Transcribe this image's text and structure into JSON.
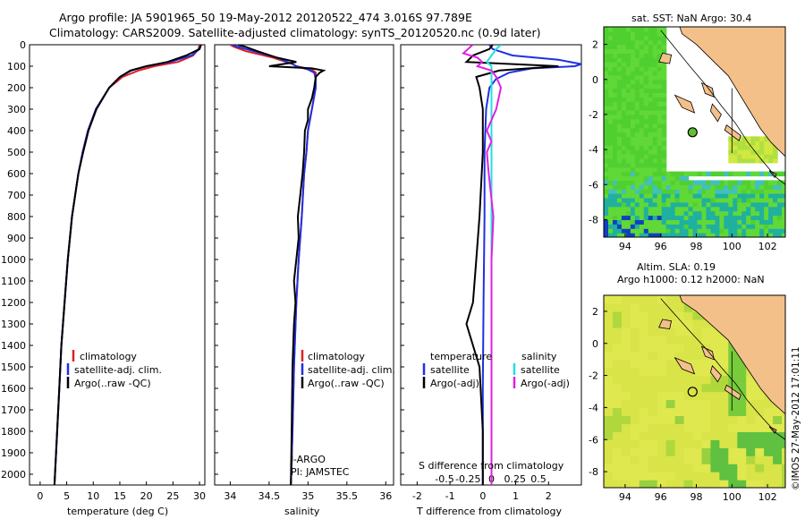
{
  "header": {
    "line1": "Argo profile: JA 5901965_50 19-May-2012 20120522_474 3.016S 97.789E",
    "line2": "Climatology: CARS2009. Satellite-adjusted climatology: synTS_20120520.nc (0.9d later)"
  },
  "colors": {
    "climatology": "#e02020",
    "satellite": "#2030e0",
    "argo": "#000000",
    "sat_salinity": "#20e0e0",
    "argo_adj_salinity": "#e020e0",
    "land": "#f4c08a",
    "ocean_nodata": "#ffffff"
  },
  "chart_data": [
    {
      "type": "line",
      "name": "temperature-profile",
      "xlabel": "temperature (deg C)",
      "ylabel": "",
      "xlim": [
        -2,
        31
      ],
      "ylim": [
        0,
        2050
      ],
      "y_reversed": true,
      "xticks": [
        "0",
        "5",
        "10",
        "15",
        "20",
        "25",
        "30"
      ],
      "yticks": [
        "0",
        "100",
        "200",
        "300",
        "400",
        "500",
        "600",
        "700",
        "800",
        "900",
        "1000",
        "1100",
        "1200",
        "1300",
        "1400",
        "1500",
        "1600",
        "1700",
        "1800",
        "1900",
        "2000"
      ],
      "legend": [
        "climatology",
        "satellite-adj. clim.",
        "Argo(..raw -QC)"
      ],
      "legend_position": "bottom-right",
      "series": [
        {
          "name": "climatology",
          "depth": [
            0,
            20,
            50,
            80,
            100,
            120,
            150,
            200,
            300,
            400,
            500,
            600,
            800,
            1000,
            1200,
            1400,
            1600,
            1800,
            2050
          ],
          "values": [
            30.0,
            29.8,
            28.8,
            26.0,
            21.5,
            18.5,
            15.5,
            13.0,
            10.5,
            9.0,
            8.0,
            7.2,
            6.0,
            5.2,
            4.6,
            4.0,
            3.6,
            3.2,
            2.7
          ]
        },
        {
          "name": "satellite-adj. clim.",
          "depth": [
            0,
            20,
            50,
            80,
            100,
            120,
            150,
            200,
            300,
            400,
            500,
            600,
            800,
            1000,
            1200,
            1400,
            1600,
            1800,
            2050
          ],
          "values": [
            30.2,
            30.0,
            28.5,
            24.5,
            20.0,
            17.2,
            15.0,
            13.0,
            10.5,
            9.0,
            8.0,
            7.2,
            6.0,
            5.2,
            4.6,
            4.0,
            3.6,
            3.2,
            2.7
          ]
        },
        {
          "name": "Argo(..raw -QC)",
          "depth": [
            0,
            20,
            50,
            80,
            100,
            120,
            150,
            200,
            300,
            400,
            500,
            600,
            800,
            1000,
            1200,
            1400,
            1600,
            1800,
            2050
          ],
          "values": [
            30.3,
            30.0,
            27.5,
            24.0,
            20.0,
            17.0,
            15.0,
            13.0,
            10.6,
            9.1,
            8.1,
            7.2,
            6.0,
            5.2,
            4.6,
            4.0,
            3.6,
            3.2,
            2.7
          ]
        }
      ]
    },
    {
      "type": "line",
      "name": "salinity-profile",
      "xlabel": "salinity",
      "xlim": [
        33.8,
        36.1
      ],
      "ylim": [
        0,
        2050
      ],
      "y_reversed": true,
      "xticks": [
        "34",
        "34.5",
        "35",
        "35.5",
        "36"
      ],
      "legend": [
        "climatology",
        "satellite-adj. clim.",
        "Argo(..raw -QC)"
      ],
      "legend_position": "bottom-right",
      "annotations": [
        "J-ARGO",
        "PI: JAMSTEC"
      ],
      "series": [
        {
          "name": "climatology",
          "depth": [
            0,
            10,
            30,
            60,
            90,
            100,
            115,
            130,
            160,
            200,
            300,
            400,
            500,
            600,
            800,
            1000,
            1200,
            1500,
            1800,
            2050
          ],
          "values": [
            34.0,
            34.05,
            34.2,
            34.55,
            34.8,
            34.85,
            35.05,
            35.1,
            35.1,
            35.1,
            35.05,
            35.0,
            34.98,
            34.95,
            34.92,
            34.88,
            34.85,
            34.82,
            34.8,
            34.78
          ]
        },
        {
          "name": "satellite-adj. clim.",
          "depth": [
            0,
            10,
            30,
            60,
            90,
            100,
            115,
            130,
            160,
            200,
            300,
            400,
            500,
            600,
            800,
            1000,
            1200,
            1500,
            1800,
            2050
          ],
          "values": [
            34.02,
            34.1,
            34.3,
            34.6,
            34.8,
            34.85,
            35.0,
            35.08,
            35.1,
            35.1,
            35.05,
            35.0,
            34.98,
            34.95,
            34.92,
            34.88,
            34.85,
            34.82,
            34.8,
            34.78
          ]
        },
        {
          "name": "Argo(..raw -QC)",
          "depth": [
            0,
            10,
            30,
            60,
            80,
            100,
            110,
            120,
            130,
            150,
            200,
            250,
            300,
            350,
            400,
            500,
            600,
            700,
            800,
            900,
            1000,
            1100,
            1200,
            1300,
            1500,
            1800,
            2050
          ],
          "values": [
            34.1,
            34.2,
            34.35,
            34.6,
            34.85,
            34.5,
            35.05,
            35.2,
            35.15,
            35.1,
            35.08,
            35.05,
            35.0,
            35.0,
            34.96,
            34.95,
            34.93,
            34.9,
            34.87,
            34.88,
            34.85,
            34.82,
            34.84,
            34.82,
            34.8,
            34.79,
            34.78
          ]
        }
      ]
    },
    {
      "type": "line",
      "name": "difference-profile",
      "xlabel": "T difference from climatology",
      "xlabel_top": "S difference from climatology",
      "xlim": [
        -2.5,
        3.0
      ],
      "ylim": [
        0,
        2050
      ],
      "y_reversed": true,
      "xticks": [
        "-2",
        "-1",
        "0",
        "1",
        "2"
      ],
      "xticks_s": [
        "-0.5",
        "-0.25",
        "0",
        "0.25",
        "0.5"
      ],
      "legend_header": [
        "temperature",
        "salinity"
      ],
      "legend": [
        "satellite",
        "Argo(-adj)",
        "satellite",
        "Argo(-adj)"
      ],
      "legend_position": "bottom",
      "series": [
        {
          "name": "T satellite",
          "depth": [
            0,
            20,
            50,
            70,
            90,
            100,
            110,
            130,
            160,
            200,
            300,
            500,
            800,
            1200,
            1600,
            2050
          ],
          "values": [
            0.2,
            0.3,
            0.9,
            2.3,
            3.0,
            2.8,
            1.5,
            0.8,
            0.4,
            0.2,
            0.1,
            0.05,
            0.05,
            0.02,
            0.0,
            0.0
          ]
        },
        {
          "name": "T Argo(-adj)",
          "depth": [
            0,
            20,
            50,
            80,
            100,
            120,
            150,
            200,
            300,
            500,
            800,
            1000,
            1200,
            1300,
            1400,
            1500,
            1800,
            2050
          ],
          "values": [
            0.3,
            0.2,
            -0.3,
            -0.5,
            2.3,
            0.5,
            -0.2,
            -0.1,
            0.0,
            0.0,
            -0.1,
            -0.2,
            -0.3,
            -0.5,
            -0.3,
            -0.1,
            0.0,
            0.0
          ]
        },
        {
          "name": "S satellite",
          "depth": [
            0,
            20,
            50,
            80,
            100,
            120,
            150,
            200,
            400,
            800,
            1200,
            1600,
            2050
          ],
          "values": [
            0.1,
            0.05,
            0.0,
            -0.05,
            0.0,
            0.0,
            0.0,
            0.0,
            0.0,
            0.0,
            0.0,
            0.0,
            0.0
          ]
        },
        {
          "name": "S Argo(-adj)",
          "depth": [
            0,
            20,
            40,
            60,
            80,
            100,
            120,
            150,
            200,
            300,
            400,
            450,
            500,
            600,
            800,
            1000,
            1400,
            1800,
            2050
          ],
          "values": [
            -0.2,
            -0.25,
            -0.3,
            -0.15,
            -0.1,
            -0.15,
            0.0,
            0.05,
            0.1,
            0.05,
            -0.05,
            0.0,
            -0.05,
            -0.03,
            0.02,
            0.0,
            0.0,
            0.0,
            0.0
          ]
        }
      ]
    },
    {
      "type": "heatmap",
      "name": "sst-map",
      "title": "sat. SST: NaN Argo: 30.4",
      "xlim": [
        92.8,
        103
      ],
      "ylim": [
        -9,
        3
      ],
      "xticks": [
        "94",
        "96",
        "98",
        "100",
        "102"
      ],
      "yticks": [
        "2",
        "0",
        "-2",
        "-4",
        "-6",
        "-8"
      ],
      "argo_position": {
        "lon": 97.789,
        "lat": -3.016
      }
    },
    {
      "type": "heatmap",
      "name": "sla-map",
      "title": "Altim. SLA: 0.19",
      "subtitle": "Argo h1000: 0.12 h2000: NaN",
      "xlim": [
        92.8,
        103
      ],
      "ylim": [
        -9,
        3
      ],
      "xticks": [
        "94",
        "96",
        "98",
        "100",
        "102"
      ],
      "yticks": [
        "2",
        "0",
        "-2",
        "-4",
        "-6",
        "-8"
      ],
      "argo_position": {
        "lon": 97.789,
        "lat": -3.016
      }
    }
  ],
  "watermark": "©IMOS 27-May-2012 17:01:11"
}
